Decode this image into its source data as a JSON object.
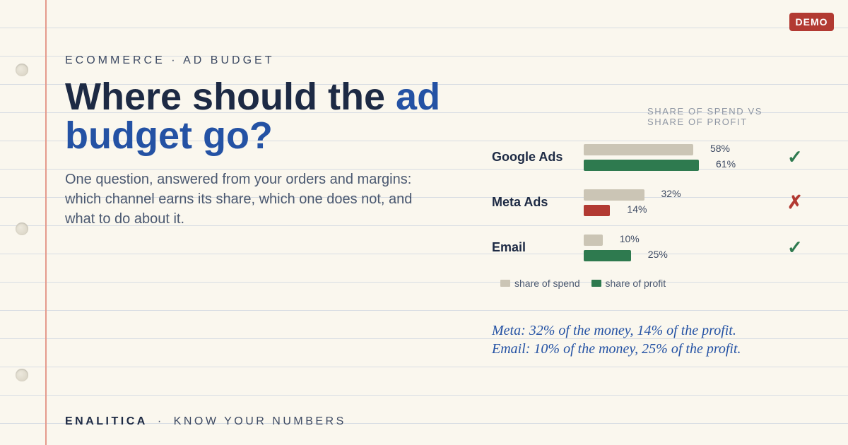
{
  "badge": {
    "label": "DEMO"
  },
  "eyebrow": "ECOMMERCE · AD BUDGET",
  "headline": {
    "part1": "Where should the ",
    "accent": "ad budget go?"
  },
  "subtitle": "One question, answered from your orders and margins: which channel earns its share, which one does not, and what to do about it.",
  "footer": {
    "brand": "ENALITICA",
    "separator": "·",
    "tagline": "KNOW YOUR NUMBERS"
  },
  "notes": [
    "Meta: 32% of the money, 14% of the profit.",
    "Email: 10% of the money, 25% of the profit."
  ],
  "colors": {
    "spend": "#cbc5b5",
    "profit_good": "#2e7a4f",
    "profit_bad": "#b23a32",
    "accent": "#2452a4"
  },
  "chart_data": {
    "type": "bar",
    "orientation": "horizontal",
    "title": "SHARE OF SPEND VS SHARE OF PROFIT",
    "categories": [
      "Google Ads",
      "Meta Ads",
      "Email"
    ],
    "series": [
      {
        "name": "share of spend",
        "values": [
          58,
          32,
          10
        ],
        "labels": [
          "58%",
          "32%",
          "10%"
        ]
      },
      {
        "name": "share of profit",
        "values": [
          61,
          14,
          25
        ],
        "labels": [
          "61%",
          "14%",
          "25%"
        ]
      }
    ],
    "verdicts": [
      {
        "symbol": "✓",
        "status": "good"
      },
      {
        "symbol": "✗",
        "status": "bad"
      },
      {
        "symbol": "✓",
        "status": "good"
      }
    ],
    "xlim": [
      0,
      61
    ],
    "unit": "%",
    "legend": "bottom-left",
    "grid": false
  }
}
